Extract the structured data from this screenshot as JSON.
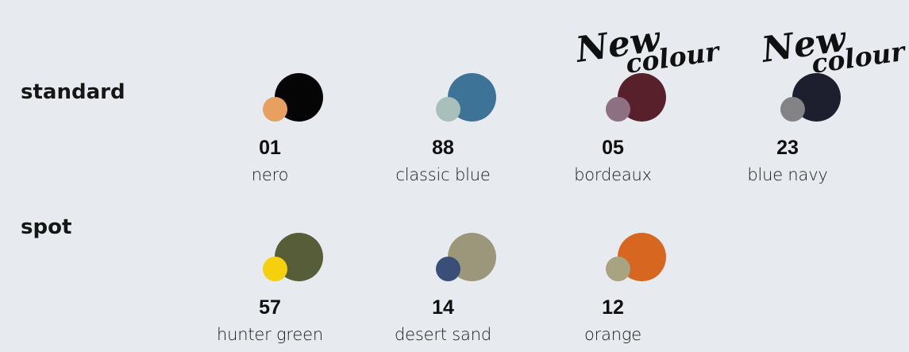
{
  "sections": {
    "standard": {
      "label": "standard",
      "swatches": [
        {
          "code": "01",
          "name": "nero",
          "main_color": "#050505",
          "accent_color": "#e8a060"
        },
        {
          "code": "88",
          "name": "classic blue",
          "main_color": "#3c7397",
          "accent_color": "#a9bfb9"
        },
        {
          "code": "05",
          "name": "bordeaux",
          "main_color": "#57202b",
          "accent_color": "#8d7182"
        },
        {
          "code": "23",
          "name": "blue navy",
          "main_color": "#1d1f2e",
          "accent_color": "#838386"
        }
      ]
    },
    "spot": {
      "label": "spot",
      "swatches": [
        {
          "code": "57",
          "name": "hunter green",
          "main_color": "#565d38",
          "accent_color": "#f5d00e"
        },
        {
          "code": "14",
          "name": "desert sand",
          "main_color": "#9c977a",
          "accent_color": "#3a4f78"
        },
        {
          "code": "12",
          "name": "orange",
          "main_color": "#d66620",
          "accent_color": "#a8a381"
        }
      ]
    }
  },
  "badges": [
    {
      "line1": "New",
      "line2": "colour"
    },
    {
      "line1": "New",
      "line2": "colour"
    }
  ]
}
